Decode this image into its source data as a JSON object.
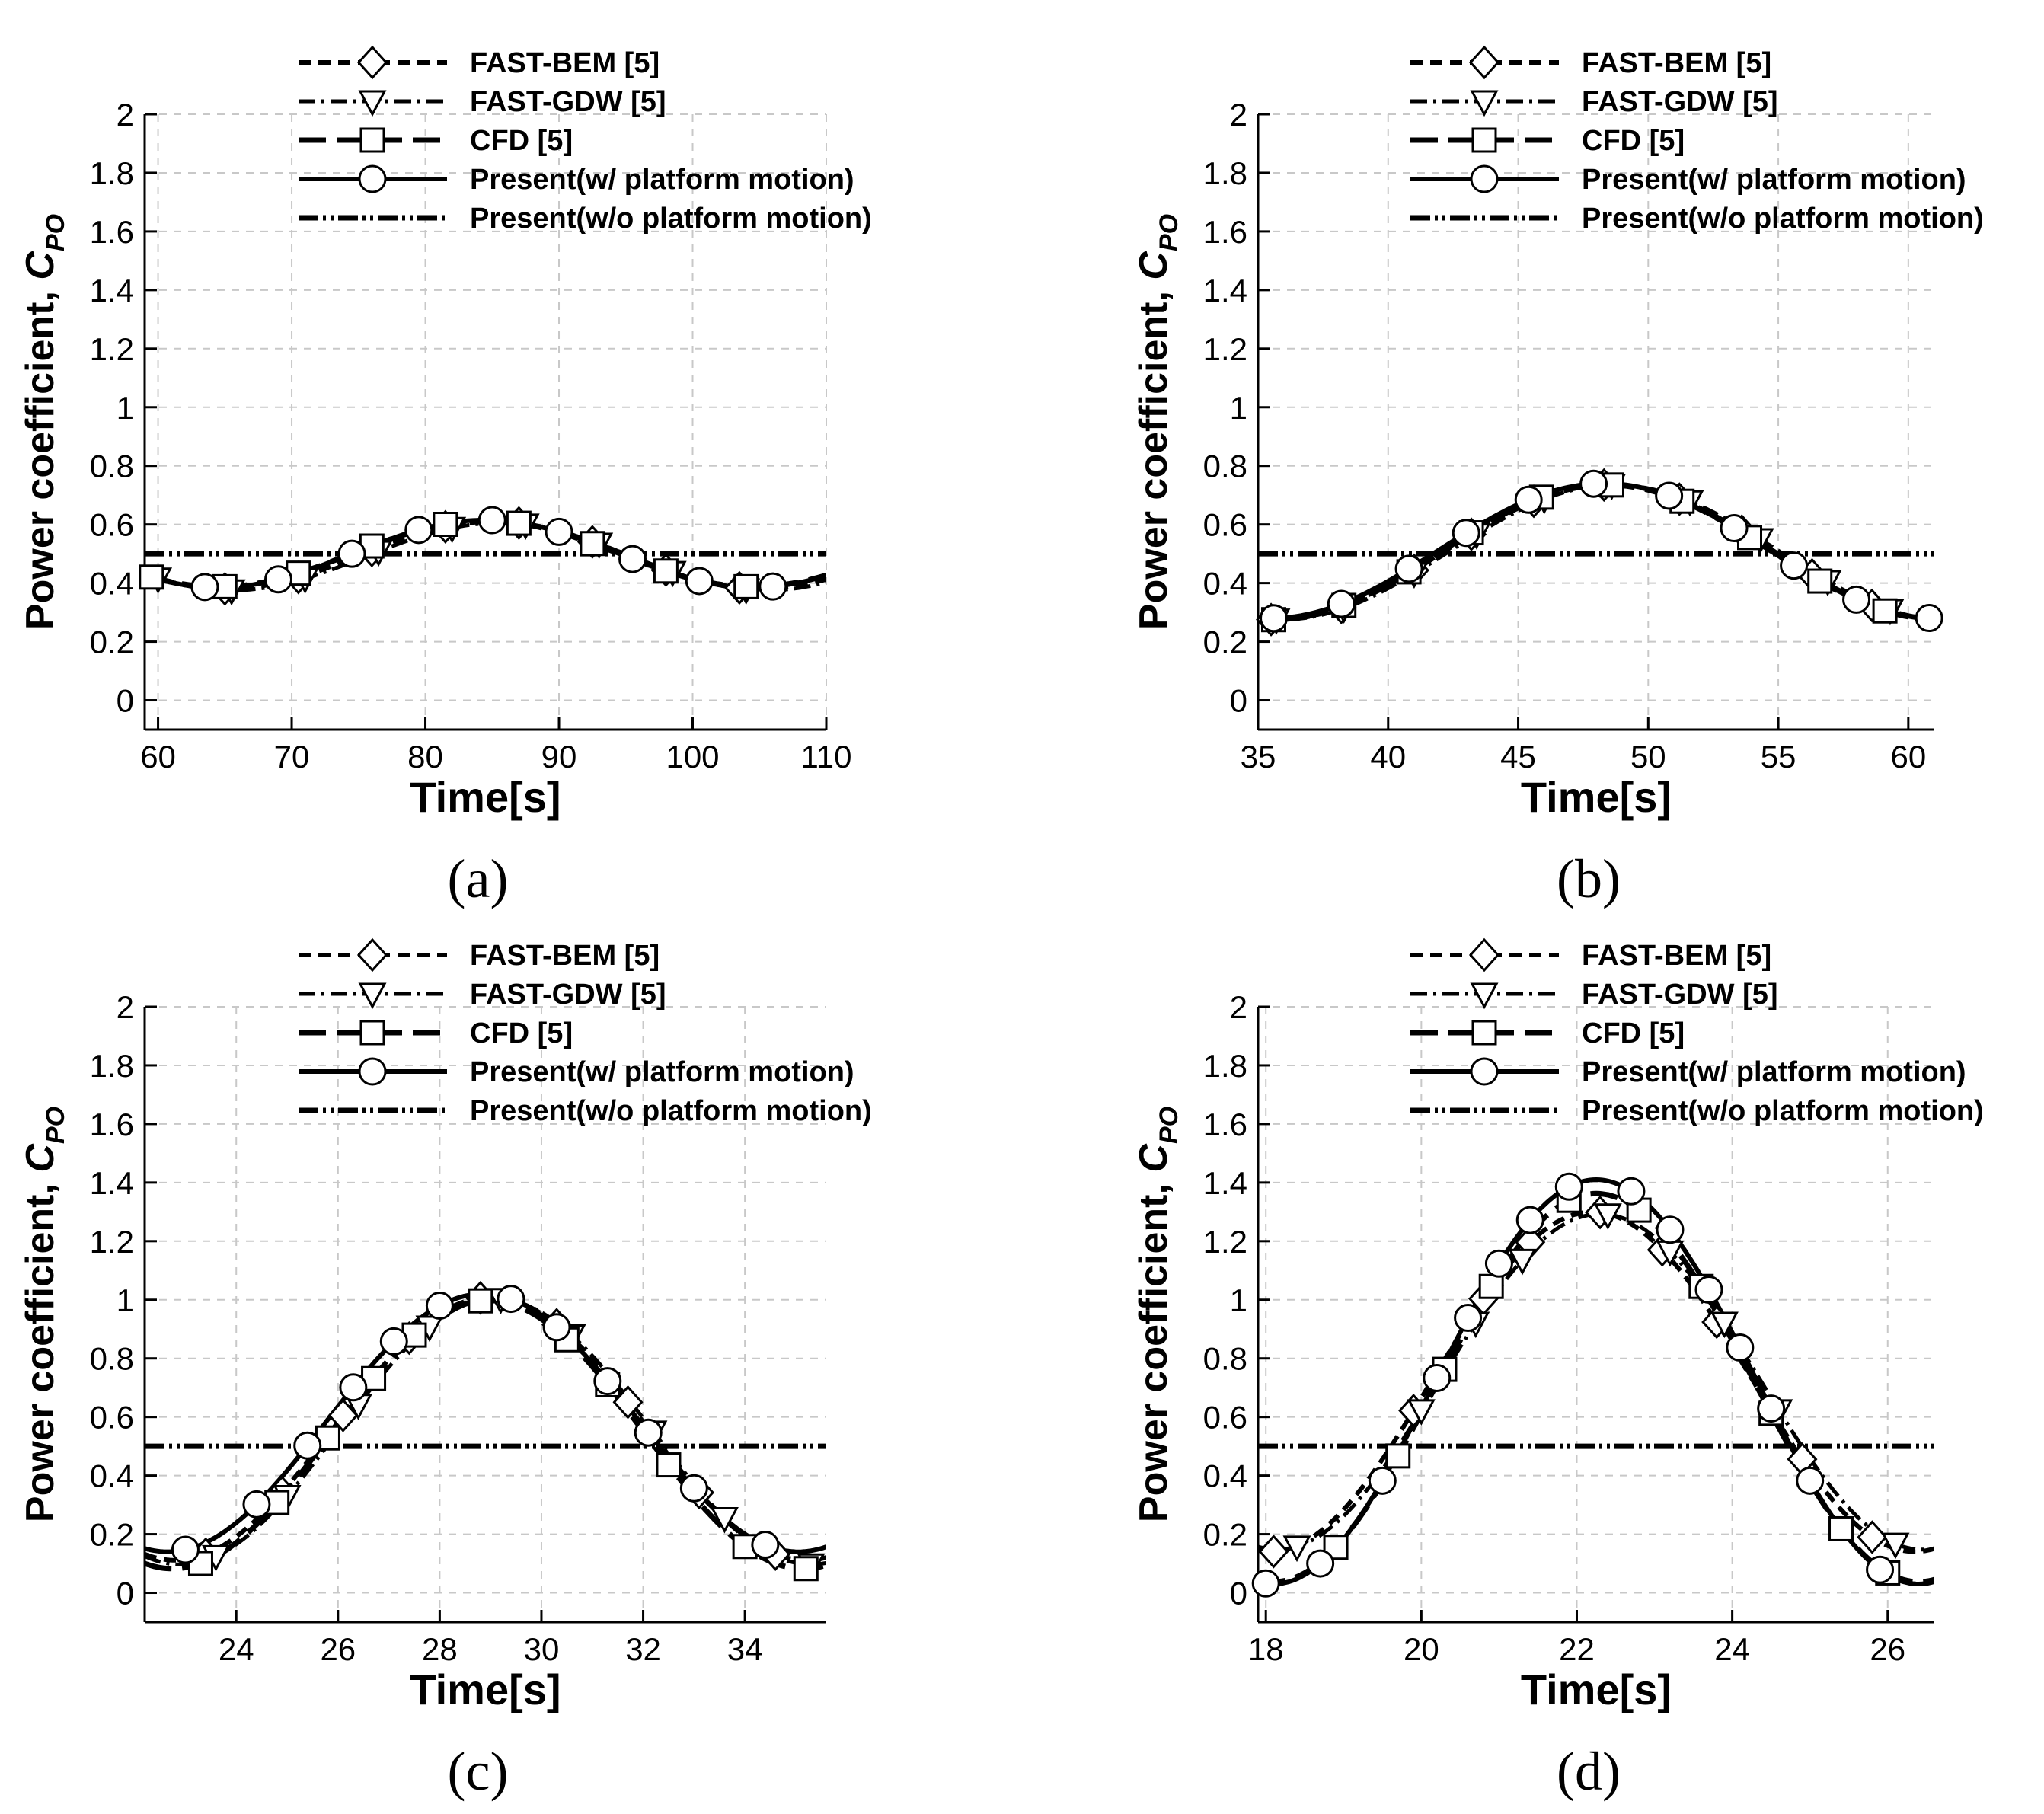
{
  "figure": {
    "ylabel_text": "Power coefficient, ",
    "ylabel_symbol": "C",
    "ylabel_subscript": "PO",
    "legend_entries": [
      "FAST-BEM [5]",
      "FAST-GDW [5]",
      "CFD [5]",
      "Present(w/   platform motion)",
      "Present(w/o platform motion)"
    ]
  },
  "chart_data": [
    {
      "type": "line",
      "panel": "(a)",
      "xlabel": "Time[s]",
      "ylabel": "Power coefficient, CPO",
      "xlim": [
        59,
        110
      ],
      "ylim": [
        -0.1,
        2
      ],
      "xticks": [
        60,
        70,
        80,
        90,
        100,
        110
      ],
      "yticks": [
        0,
        0.2,
        0.4,
        0.6,
        0.8,
        1,
        1.2,
        1.4,
        1.6,
        1.8,
        2
      ],
      "grid": true,
      "legend": "top",
      "curve": {
        "form": "cosine",
        "mean": 0.5,
        "amplitude": 0.115,
        "peak_x": 84.5,
        "period": 40
      },
      "series": [
        {
          "name": "FAST-BEM [5]",
          "mean_offset": -0.005,
          "amp_scale": 1.0,
          "phase_shift": 0.6,
          "markers_x": [
            65,
            70.5,
            76,
            81.5,
            87,
            92.5,
            98,
            103.5
          ]
        },
        {
          "name": "FAST-GDW [5]",
          "mean_offset": -0.01,
          "amp_scale": 1.0,
          "phase_shift": 1.0,
          "markers_x": [
            60,
            65.5,
            71,
            76.5,
            82,
            87.5,
            93,
            98.5,
            104
          ]
        },
        {
          "name": "CFD [5]",
          "mean_offset": 0.0,
          "amp_scale": 0.98,
          "phase_shift": 0.0,
          "markers_x": [
            59.5,
            65,
            70.5,
            76,
            81.5,
            87,
            92.5,
            98,
            104
          ]
        },
        {
          "name": "Present(w/   platform motion)",
          "mean_offset": 0.0,
          "amp_scale": 1.0,
          "phase_shift": 0.0,
          "markers_x": [
            63.5,
            69,
            74.5,
            79.5,
            85,
            90,
            95.5,
            100.5,
            106
          ]
        },
        {
          "name": "Present(w/o platform motion)",
          "constant": 0.5
        }
      ]
    },
    {
      "type": "line",
      "panel": "(b)",
      "xlabel": "Time[s]",
      "ylabel": "Power coefficient, CPO",
      "xlim": [
        35,
        61
      ],
      "ylim": [
        -0.1,
        2
      ],
      "xticks": [
        35,
        40,
        45,
        50,
        55,
        60
      ],
      "yticks": [
        0,
        0.2,
        0.4,
        0.6,
        0.8,
        1,
        1.2,
        1.4,
        1.6,
        1.8,
        2
      ],
      "grid": true,
      "legend": "top",
      "curve": {
        "form": "cosine",
        "mean": 0.51,
        "amplitude": 0.23,
        "peak_x": 48.3,
        "period": 25.6
      },
      "series": [
        {
          "name": "FAST-BEM [5]",
          "mean_offset": -0.005,
          "amp_scale": 1.0,
          "phase_shift": 0.2,
          "markers_x": [
            35.5,
            38.2,
            41,
            43.2,
            45.6,
            48.3,
            51.2,
            53.6,
            56.3,
            58.6
          ]
        },
        {
          "name": "FAST-GDW [5]",
          "mean_offset": -0.005,
          "amp_scale": 1.0,
          "phase_shift": 0.4,
          "markers_x": [
            35.7,
            38.3,
            41,
            43.4,
            46,
            48.6,
            51.6,
            54.3,
            56.9,
            59.3
          ]
        },
        {
          "name": "CFD [5]",
          "mean_offset": -0.005,
          "amp_scale": 1.0,
          "phase_shift": 0.1,
          "markers_x": [
            35.6,
            38.3,
            40.8,
            43.2,
            45.9,
            48.6,
            51.3,
            53.9,
            56.6,
            59.1
          ]
        },
        {
          "name": "Present(w/   platform motion)",
          "mean_offset": 0.0,
          "amp_scale": 1.0,
          "phase_shift": 0.0,
          "markers_x": [
            35.6,
            38.2,
            40.8,
            43,
            45.4,
            47.9,
            50.8,
            53.3,
            55.6,
            58,
            60.8
          ]
        },
        {
          "name": "Present(w/o platform motion)",
          "constant": 0.5
        }
      ]
    },
    {
      "type": "line",
      "panel": "(c)",
      "xlabel": "Time[s]",
      "ylabel": "Power coefficient, CPO",
      "xlim": [
        22.2,
        35.6
      ],
      "ylim": [
        -0.1,
        2
      ],
      "xticks": [
        24,
        26,
        28,
        30,
        32,
        34
      ],
      "yticks": [
        0,
        0.2,
        0.4,
        0.6,
        0.8,
        1,
        1.2,
        1.4,
        1.6,
        1.8,
        2
      ],
      "grid": true,
      "legend": "top",
      "curve": {
        "form": "cosine",
        "mean": 0.58,
        "amplitude": 0.44,
        "peak_x": 28.85,
        "period": 12.4
      },
      "series": [
        {
          "name": "FAST-BEM [5]",
          "mean_offset": -0.02,
          "amp_scale": 1.02,
          "phase_shift": 0.15,
          "markers_x": [
            23.4,
            24.9,
            26.1,
            27.4,
            28.8,
            30.3,
            31.7,
            33.1,
            34.6
          ]
        },
        {
          "name": "FAST-GDW [5]",
          "mean_offset": -0.03,
          "amp_scale": 1.03,
          "phase_shift": 0.25,
          "markers_x": [
            23.6,
            25,
            26.4,
            27.8,
            29.2,
            30.6,
            32.2,
            33.6,
            35.3
          ]
        },
        {
          "name": "CFD [5]",
          "mean_offset": -0.04,
          "amp_scale": 1.04,
          "phase_shift": 0.1,
          "markers_x": [
            23.3,
            24.8,
            25.8,
            26.7,
            27.5,
            28.8,
            30.5,
            31.3,
            32.5,
            34,
            35.2
          ]
        },
        {
          "name": "Present(w/   platform motion)",
          "mean_offset": 0.0,
          "amp_scale": 1.0,
          "phase_shift": 0.0,
          "markers_x": [
            23,
            24.4,
            25.4,
            26.3,
            27.1,
            28,
            29.4,
            30.3,
            31.3,
            32.1,
            33,
            34.4
          ]
        },
        {
          "name": "Present(w/o platform motion)",
          "constant": 0.5
        }
      ]
    },
    {
      "type": "line",
      "panel": "(d)",
      "xlabel": "Time[s]",
      "ylabel": "Power coefficient, CPO",
      "xlim": [
        17.9,
        26.6
      ],
      "ylim": [
        -0.1,
        2
      ],
      "xticks": [
        18,
        20,
        22,
        24,
        26
      ],
      "yticks": [
        0,
        0.2,
        0.4,
        0.6,
        0.8,
        1,
        1.2,
        1.4,
        1.6,
        1.8,
        2
      ],
      "grid": true,
      "legend": "top",
      "curve": {
        "form": "cosine",
        "mean": 0.72,
        "amplitude": 0.69,
        "peak_x": 22.25,
        "period": 8.3
      },
      "series": [
        {
          "name": "FAST-BEM [5]",
          "mean_offset": 0.0,
          "amp_scale": 0.84,
          "phase_shift": -0.05,
          "markers_x": [
            18.1,
            19.9,
            20.8,
            21.4,
            22.3,
            23.1,
            23.8,
            24.9,
            25.8
          ]
        },
        {
          "name": "FAST-GDW [5]",
          "mean_offset": 0.0,
          "amp_scale": 0.83,
          "phase_shift": 0.05,
          "markers_x": [
            18.4,
            20,
            20.7,
            21.3,
            22.4,
            23.2,
            23.9,
            24.6,
            26.1
          ]
        },
        {
          "name": "CFD [5]",
          "mean_offset": -0.02,
          "amp_scale": 0.96,
          "phase_shift": 0.0,
          "markers_x": [
            18.9,
            19.7,
            20.3,
            20.9,
            21.9,
            22.8,
            23.6,
            24.5,
            25.4,
            26
          ]
        },
        {
          "name": "Present(w/   platform motion)",
          "mean_offset": 0.0,
          "amp_scale": 1.0,
          "phase_shift": 0.0,
          "markers_x": [
            18,
            18.7,
            19.5,
            20.2,
            20.6,
            21,
            21.4,
            21.9,
            22.7,
            23.2,
            23.7,
            24.1,
            24.5,
            25,
            25.9
          ]
        },
        {
          "name": "Present(w/o platform motion)",
          "constant": 0.5
        }
      ]
    }
  ]
}
